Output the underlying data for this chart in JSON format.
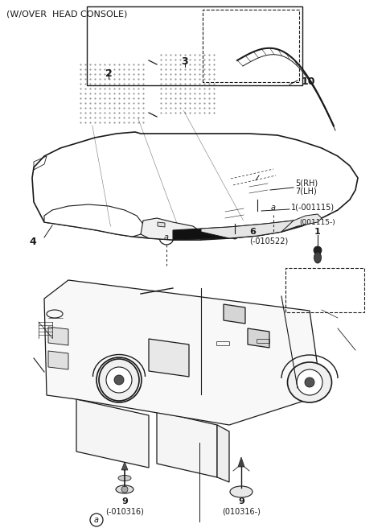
{
  "title": "(W/OVER  HEAD CONSOLE)",
  "bg_color": "#ffffff",
  "lc": "#1a1a1a",
  "title_fontsize": 8.0,
  "parts": {
    "2_label": "2",
    "3_label": "3",
    "10_label": "10",
    "4_label": "4",
    "5rh_label": "5(RH)",
    "7lh_label": "7(LH)",
    "1_label": "1(-001115)",
    "6_label": "6",
    "6_sub": "(-010522)",
    "box1_label": "(001115-)",
    "box1_num": "1",
    "a_label": "a",
    "bottom_left_label": "(-010316)",
    "bottom_left_num": "9",
    "bottom_right_label": "(010316-)",
    "bottom_right_num": "9"
  }
}
